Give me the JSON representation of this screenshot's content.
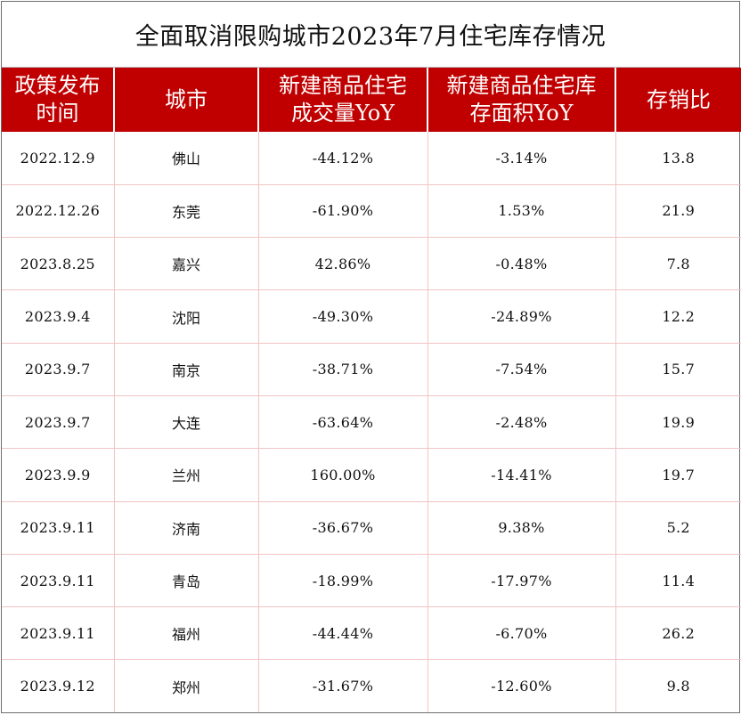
{
  "title": "全面取消限购城市2023年7月住宅库存情况",
  "colors": {
    "header_bg": "#c00000",
    "header_text": "#ffffff",
    "grid_line": "#f2c4c4"
  },
  "table": {
    "headers": {
      "col1_line1": "政策发布",
      "col1_line2": "时间",
      "col2": "城市",
      "col3_line1": "新建商品住宅",
      "col3_line2": "成交量YoY",
      "col4_line1": "新建商品住宅库",
      "col4_line2": "存面积YoY",
      "col5": "存销比"
    },
    "rows": [
      [
        "2022.12.9",
        "佛山",
        "-44.12%",
        "-3.14%",
        "13.8"
      ],
      [
        "2022.12.26",
        "东莞",
        "-61.90%",
        "1.53%",
        "21.9"
      ],
      [
        "2023.8.25",
        "嘉兴",
        "42.86%",
        "-0.48%",
        "7.8"
      ],
      [
        "2023.9.4",
        "沈阳",
        "-49.30%",
        "-24.89%",
        "12.2"
      ],
      [
        "2023.9.7",
        "南京",
        "-38.71%",
        "-7.54%",
        "15.7"
      ],
      [
        "2023.9.7",
        "大连",
        "-63.64%",
        "-2.48%",
        "19.9"
      ],
      [
        "2023.9.9",
        "兰州",
        "160.00%",
        "-14.41%",
        "19.7"
      ],
      [
        "2023.9.11",
        "济南",
        "-36.67%",
        "9.38%",
        "5.2"
      ],
      [
        "2023.9.11",
        "青岛",
        "-18.99%",
        "-17.97%",
        "11.4"
      ],
      [
        "2023.9.11",
        "福州",
        "-44.44%",
        "-6.70%",
        "26.2"
      ],
      [
        "2023.9.12",
        "郑州",
        "-31.67%",
        "-12.60%",
        "9.8"
      ]
    ]
  }
}
